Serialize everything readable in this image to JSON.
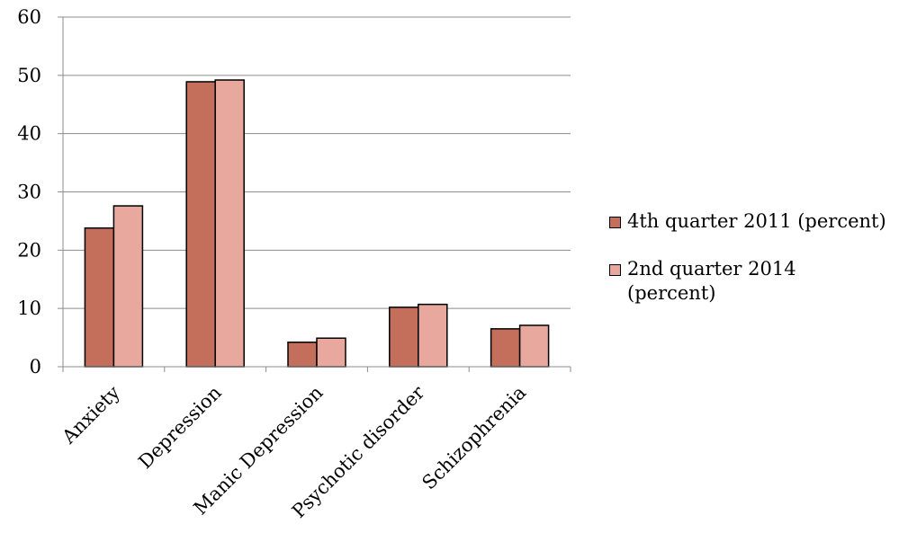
{
  "chart_data": {
    "type": "bar",
    "title": "",
    "xlabel": "",
    "ylabel": "",
    "categories": [
      "Anxiety",
      "Depression",
      "Manic Depression",
      "Psychotic disorder",
      "Schizophrenia"
    ],
    "series": [
      {
        "name": "4th quarter 2011 (percent)",
        "color": "#c46e5c",
        "values": [
          23.8,
          48.9,
          4.2,
          10.2,
          6.5
        ]
      },
      {
        "name": "2nd quarter 2014 (percent)",
        "color": "#e8a89d",
        "values": [
          27.6,
          49.2,
          4.9,
          10.7,
          7.1
        ]
      }
    ],
    "ylim": [
      0,
      60
    ],
    "yticks": [
      "0",
      "10",
      "20",
      "30",
      "40",
      "50",
      "60"
    ],
    "grid": true,
    "legend_position": "right"
  }
}
